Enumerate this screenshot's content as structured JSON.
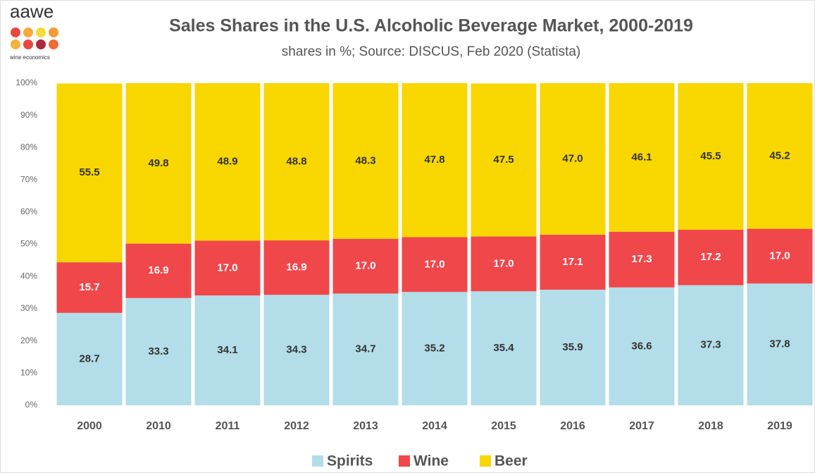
{
  "logo": {
    "name": "aawe",
    "tagline": "wine economics"
  },
  "chart_data": {
    "type": "stacked_bar",
    "title": "Sales Shares in the U.S. Alcoholic Beverage Market, 2000-2019",
    "subtitle": "shares in %; Source: DISCUS, Feb 2020 (Statista)",
    "categories": [
      "2000",
      "2010",
      "2011",
      "2012",
      "2013",
      "2014",
      "2015",
      "2016",
      "2017",
      "2018",
      "2019"
    ],
    "series": [
      {
        "name": "Spirits",
        "color": "#b3dde8",
        "label_color": "#333333",
        "values": [
          28.7,
          33.3,
          34.1,
          34.3,
          34.7,
          35.2,
          35.4,
          35.9,
          36.6,
          37.3,
          37.8
        ],
        "value_labels": [
          "28.7",
          "33.3",
          "34.1",
          "34.3",
          "34.7",
          "35.2",
          "35.4",
          "35.9",
          "36.6",
          "37.3",
          "37.8"
        ]
      },
      {
        "name": "Wine",
        "color": "#f0474b",
        "label_color": "#ffffff",
        "values": [
          15.7,
          16.9,
          17.0,
          16.9,
          17.0,
          17.0,
          17.0,
          17.1,
          17.3,
          17.2,
          17.0
        ],
        "value_labels": [
          "15.7",
          "16.9",
          "17.0",
          "16.9",
          "17.0",
          "17.0",
          "17.0",
          "17.1",
          "17.3",
          "17.2",
          "17.0"
        ]
      },
      {
        "name": "Beer",
        "color": "#f8d600",
        "label_color": "#333333",
        "values": [
          55.5,
          49.8,
          48.9,
          48.8,
          48.3,
          47.8,
          47.5,
          47.0,
          46.1,
          45.5,
          45.2
        ],
        "value_labels": [
          "55.5",
          "49.8",
          "48.9",
          "48.8",
          "48.3",
          "47.8",
          "47.5",
          "47.0",
          "46.1",
          "45.5",
          "45.2"
        ]
      }
    ],
    "ylim": [
      0,
      100
    ],
    "yticks": [
      {
        "value": 0,
        "label": "0%"
      },
      {
        "value": 10,
        "label": "10%"
      },
      {
        "value": 20,
        "label": "20%"
      },
      {
        "value": 30,
        "label": "30%"
      },
      {
        "value": 40,
        "label": "40%"
      },
      {
        "value": 50,
        "label": "50%"
      },
      {
        "value": 60,
        "label": "60%"
      },
      {
        "value": 70,
        "label": "70%"
      },
      {
        "value": 80,
        "label": "80%"
      },
      {
        "value": 90,
        "label": "90%"
      },
      {
        "value": 100,
        "label": "100%"
      }
    ],
    "grid": false,
    "legend": "bottom"
  }
}
